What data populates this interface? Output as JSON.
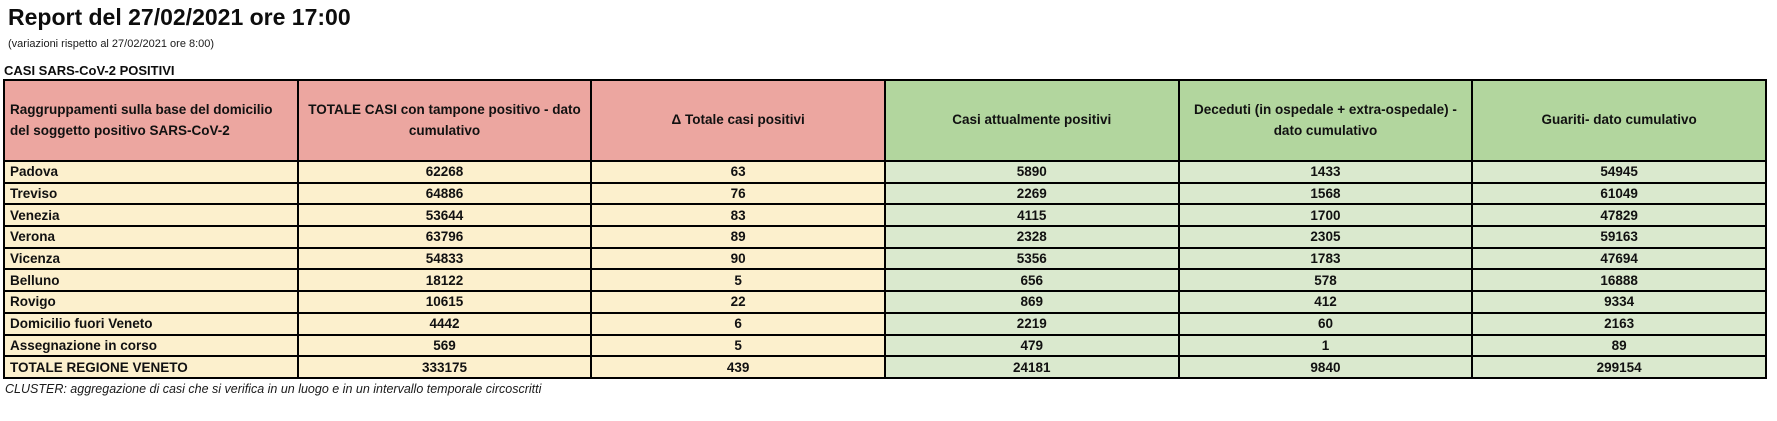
{
  "header": {
    "title": "Report del 27/02/2021 ore 17:00",
    "subtitle": "(variazioni rispetto al 27/02/2021 ore 8:00)"
  },
  "section_label": "CASI SARS-CoV-2 POSITIVI",
  "footnote": "CLUSTER: aggregazione di casi che si verifica in un luogo e in un intervallo temporale circoscritti",
  "colors": {
    "header_pink": "#eca6a0",
    "header_green": "#b2d69e",
    "cell_cream": "#fcf0cd",
    "cell_green": "#dae9ce",
    "border": "#000000"
  },
  "table": {
    "columns": [
      {
        "label": "Raggruppamenti sulla base del domicilio del soggetto positivo SARS-CoV-2",
        "group": "pink"
      },
      {
        "label": "TOTALE CASI con tampone positivo - dato cumulativo",
        "group": "pink"
      },
      {
        "label": "Δ Totale casi positivi",
        "group": "pink"
      },
      {
        "label": "Casi attualmente positivi",
        "group": "green"
      },
      {
        "label": "Deceduti (in ospedale + extra-ospedale) -dato cumulativo",
        "group": "green"
      },
      {
        "label": "Guariti- dato cumulativo",
        "group": "green"
      }
    ],
    "rows": [
      {
        "label": "Padova",
        "values": [
          "62268",
          "63",
          "5890",
          "1433",
          "54945"
        ]
      },
      {
        "label": "Treviso",
        "values": [
          "64886",
          "76",
          "2269",
          "1568",
          "61049"
        ]
      },
      {
        "label": "Venezia",
        "values": [
          "53644",
          "83",
          "4115",
          "1700",
          "47829"
        ]
      },
      {
        "label": "Verona",
        "values": [
          "63796",
          "89",
          "2328",
          "2305",
          "59163"
        ]
      },
      {
        "label": "Vicenza",
        "values": [
          "54833",
          "90",
          "5356",
          "1783",
          "47694"
        ]
      },
      {
        "label": "Belluno",
        "values": [
          "18122",
          "5",
          "656",
          "578",
          "16888"
        ]
      },
      {
        "label": "Rovigo",
        "values": [
          "10615",
          "22",
          "869",
          "412",
          "9334"
        ]
      },
      {
        "label": "Domicilio fuori Veneto",
        "values": [
          "4442",
          "6",
          "2219",
          "60",
          "2163"
        ]
      },
      {
        "label": "Assegnazione in corso",
        "values": [
          "569",
          "5",
          "479",
          "1",
          "89"
        ]
      }
    ],
    "total_row": {
      "label": "TOTALE REGIONE VENETO",
      "values": [
        "333175",
        "439",
        "24181",
        "9840",
        "299154"
      ]
    }
  }
}
